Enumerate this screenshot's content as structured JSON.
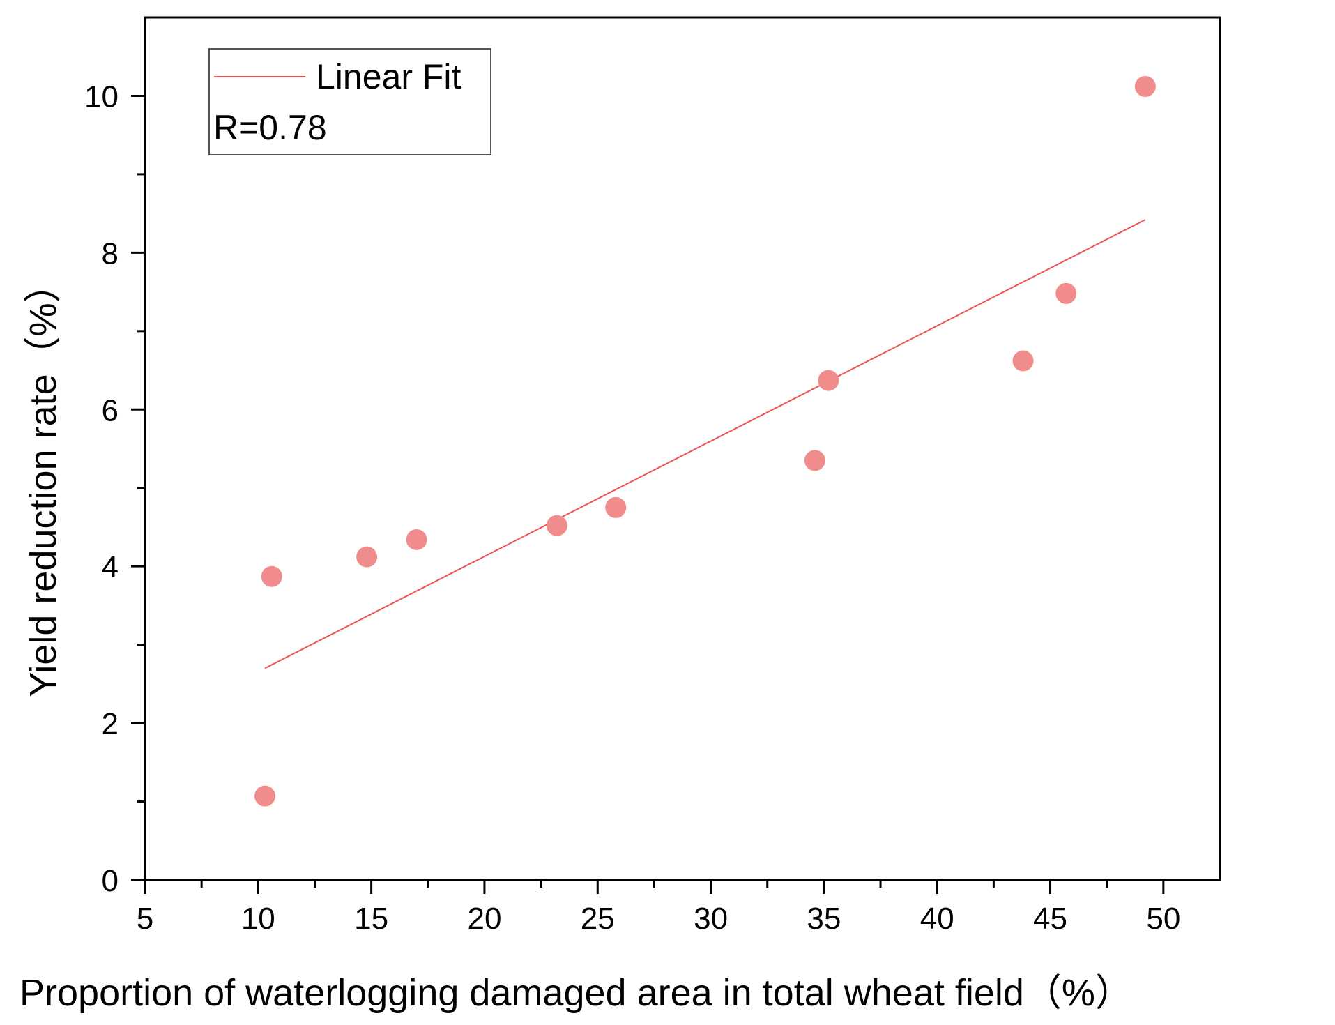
{
  "chart_data": {
    "type": "scatter",
    "title": "",
    "xlabel": "Proportion of waterlogging damaged area in total wheat field（%）",
    "ylabel": "Yield reduction rate（%）",
    "xlim": [
      5,
      52.5
    ],
    "ylim": [
      0,
      11
    ],
    "x_ticks": [
      5,
      10,
      15,
      20,
      25,
      30,
      35,
      40,
      45,
      50
    ],
    "y_ticks": [
      0,
      2,
      4,
      6,
      8,
      10
    ],
    "x_tick_labels": [
      "5",
      "10",
      "15",
      "20",
      "25",
      "30",
      "35",
      "40",
      "45",
      "50"
    ],
    "y_tick_labels": [
      "0",
      "2",
      "4",
      "6",
      "8",
      "10"
    ],
    "grid": false,
    "legend": {
      "position": "top-left",
      "entries": [
        {
          "label": "Linear Fit",
          "type": "line"
        }
      ],
      "annotation": "R=0.78"
    },
    "series": [
      {
        "name": "data",
        "type": "scatter",
        "color": "#f08c8c",
        "points": [
          {
            "x": 10.3,
            "y": 1.07
          },
          {
            "x": 10.6,
            "y": 3.87
          },
          {
            "x": 14.8,
            "y": 4.12
          },
          {
            "x": 17.0,
            "y": 4.34
          },
          {
            "x": 23.2,
            "y": 4.52
          },
          {
            "x": 25.8,
            "y": 4.75
          },
          {
            "x": 34.6,
            "y": 5.35
          },
          {
            "x": 35.2,
            "y": 6.37
          },
          {
            "x": 43.8,
            "y": 6.62
          },
          {
            "x": 45.7,
            "y": 7.48
          },
          {
            "x": 49.2,
            "y": 10.12
          }
        ]
      },
      {
        "name": "Linear Fit",
        "type": "line",
        "color": "#f05050",
        "points": [
          {
            "x": 10.3,
            "y": 2.7
          },
          {
            "x": 49.2,
            "y": 8.42
          }
        ]
      }
    ]
  }
}
